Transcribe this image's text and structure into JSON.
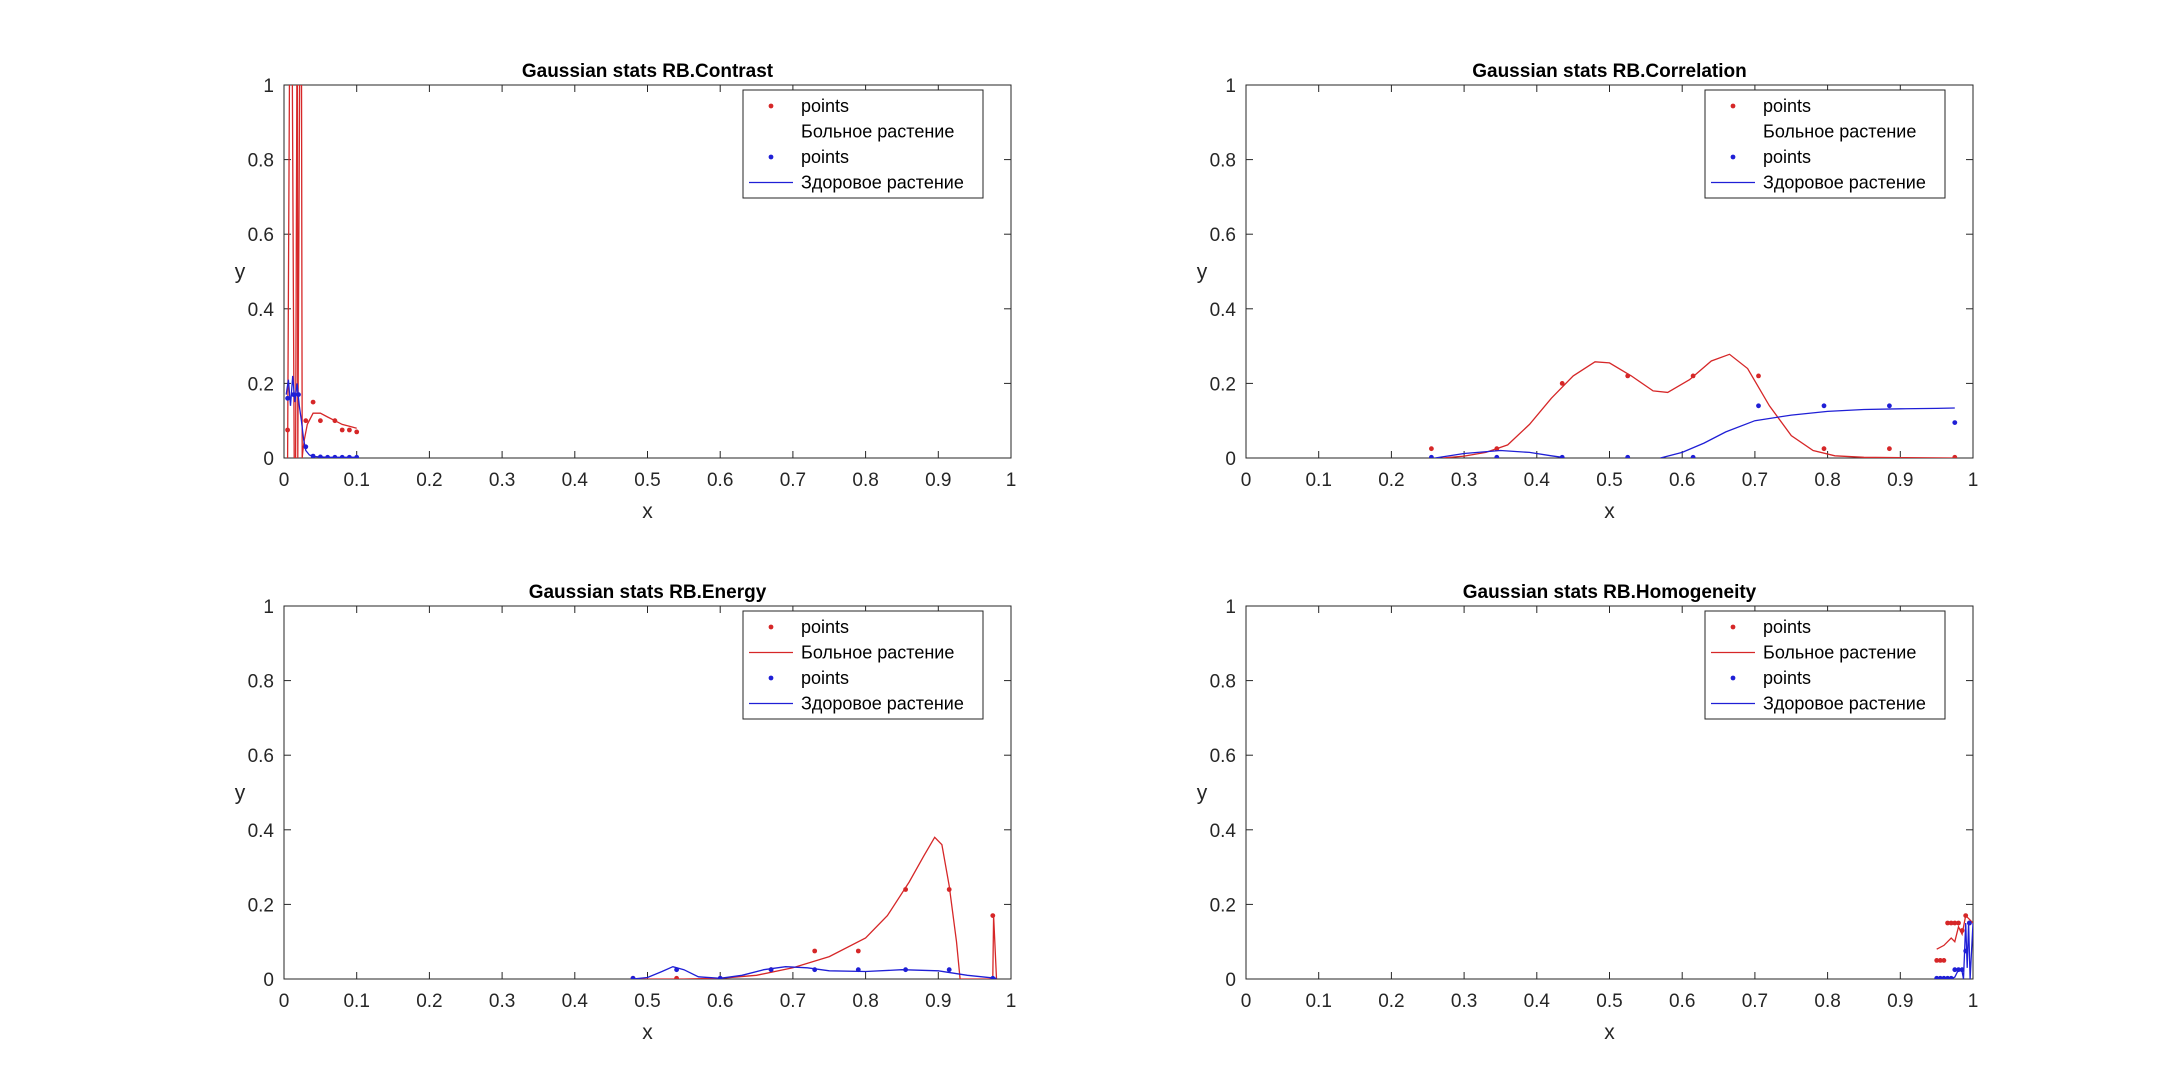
{
  "chart_data": [
    {
      "type": "line",
      "title": "Gaussian stats RB.Contrast",
      "xlabel": "x",
      "ylabel": "y",
      "xlim": [
        0,
        1
      ],
      "ylim": [
        0,
        1
      ],
      "xticks": [
        "0",
        "0.1",
        "0.2",
        "0.3",
        "0.4",
        "0.5",
        "0.6",
        "0.7",
        "0.8",
        "0.9",
        "1"
      ],
      "yticks": [
        "0",
        "0.2",
        "0.4",
        "0.6",
        "0.8",
        "1"
      ],
      "legend_position": "top-right",
      "legend": [
        {
          "label": "points",
          "kind": "marker",
          "color": "#d62728"
        },
        {
          "label": "Больное растение",
          "kind": "none",
          "color": "#d62728"
        },
        {
          "label": "points",
          "kind": "marker",
          "color": "#1f1fd6"
        },
        {
          "label": "Здоровое растение",
          "kind": "line",
          "color": "#1f1fd6"
        }
      ],
      "series": [
        {
          "kind": "points",
          "color": "#d62728",
          "x": [
            0.005,
            0.03,
            0.04,
            0.05,
            0.07,
            0.08,
            0.09,
            0.1
          ],
          "y": [
            0.075,
            0.1,
            0.15,
            0.1,
            0.1,
            0.075,
            0.075,
            0.07
          ]
        },
        {
          "kind": "line",
          "color": "#d62728",
          "x": [
            0.005,
            0.008,
            0.011,
            0.014,
            0.016,
            0.018,
            0.0185,
            0.019,
            0.022,
            0.024,
            0.025,
            0.026,
            0.028,
            0.032,
            0.04,
            0.05,
            0.06,
            0.07,
            0.08,
            0.09,
            0.1
          ],
          "y": [
            0,
            1.2,
            1.2,
            0,
            0,
            1.2,
            1.2,
            0,
            1.2,
            1.2,
            0,
            0.02,
            0.05,
            0.09,
            0.12,
            0.12,
            0.11,
            0.1,
            0.09,
            0.085,
            0.08
          ]
        },
        {
          "kind": "points",
          "color": "#1f1fd6",
          "x": [
            0.005,
            0.013,
            0.02,
            0.03,
            0.04,
            0.05,
            0.06,
            0.07,
            0.08,
            0.09,
            0.1
          ],
          "y": [
            0.16,
            0.17,
            0.17,
            0.03,
            0.005,
            0.003,
            0.002,
            0.002,
            0.002,
            0.002,
            0.002
          ]
        },
        {
          "kind": "line",
          "color": "#1f1fd6",
          "x": [
            0.003,
            0.006,
            0.009,
            0.012,
            0.015,
            0.018,
            0.021,
            0.024,
            0.027,
            0.03,
            0.035,
            0.04,
            0.06,
            0.08,
            0.1
          ],
          "y": [
            0.17,
            0.21,
            0.14,
            0.22,
            0.15,
            0.2,
            0.14,
            0.1,
            0.05,
            0.02,
            0.008,
            0.004,
            0.002,
            0.002,
            0.002
          ]
        }
      ]
    },
    {
      "type": "line",
      "title": "Gaussian stats RB.Correlation",
      "xlabel": "x",
      "ylabel": "y",
      "xlim": [
        0,
        1
      ],
      "ylim": [
        0,
        1
      ],
      "xticks": [
        "0",
        "0.1",
        "0.2",
        "0.3",
        "0.4",
        "0.5",
        "0.6",
        "0.7",
        "0.8",
        "0.9",
        "1"
      ],
      "yticks": [
        "0",
        "0.2",
        "0.4",
        "0.6",
        "0.8",
        "1"
      ],
      "legend_position": "top-right",
      "legend": [
        {
          "label": "points",
          "kind": "marker",
          "color": "#d62728"
        },
        {
          "label": "Больное растение",
          "kind": "none",
          "color": "#d62728"
        },
        {
          "label": "points",
          "kind": "marker",
          "color": "#1f1fd6"
        },
        {
          "label": "Здоровое растение",
          "kind": "line",
          "color": "#1f1fd6"
        }
      ],
      "series": [
        {
          "kind": "points",
          "color": "#d62728",
          "x": [
            0.255,
            0.345,
            0.435,
            0.525,
            0.615,
            0.705,
            0.795,
            0.885,
            0.975
          ],
          "y": [
            0.025,
            0.025,
            0.2,
            0.22,
            0.22,
            0.22,
            0.025,
            0.025,
            0.002
          ]
        },
        {
          "kind": "line",
          "color": "#d62728",
          "x": [
            0.27,
            0.3,
            0.33,
            0.36,
            0.39,
            0.42,
            0.45,
            0.48,
            0.5,
            0.53,
            0.56,
            0.58,
            0.61,
            0.64,
            0.665,
            0.69,
            0.72,
            0.75,
            0.78,
            0.81,
            0.85,
            0.9,
            0.975
          ],
          "y": [
            0,
            0.005,
            0.015,
            0.035,
            0.09,
            0.16,
            0.22,
            0.258,
            0.255,
            0.22,
            0.18,
            0.176,
            0.21,
            0.26,
            0.278,
            0.24,
            0.14,
            0.06,
            0.02,
            0.006,
            0.002,
            0.001,
            0
          ]
        },
        {
          "kind": "points",
          "color": "#1f1fd6",
          "x": [
            0.255,
            0.345,
            0.435,
            0.525,
            0.615,
            0.705,
            0.795,
            0.885,
            0.975
          ],
          "y": [
            0.002,
            0.002,
            0.002,
            0.002,
            0.002,
            0.14,
            0.14,
            0.14,
            0.095
          ]
        },
        {
          "kind": "line",
          "color": "#1f1fd6",
          "x": [
            0.26,
            0.3,
            0.35,
            0.39,
            0.42,
            0.435
          ],
          "y": [
            0,
            0.012,
            0.02,
            0.015,
            0.006,
            0.002
          ]
        },
        {
          "kind": "line",
          "color": "#1f1fd6",
          "x": [
            0.57,
            0.6,
            0.63,
            0.66,
            0.7,
            0.75,
            0.8,
            0.85,
            0.9,
            0.95,
            0.975
          ],
          "y": [
            0,
            0.015,
            0.04,
            0.07,
            0.1,
            0.115,
            0.125,
            0.13,
            0.132,
            0.133,
            0.134
          ]
        }
      ]
    },
    {
      "type": "line",
      "title": "Gaussian stats RB.Energy",
      "xlabel": "x",
      "ylabel": "y",
      "xlim": [
        0,
        1
      ],
      "ylim": [
        0,
        1
      ],
      "xticks": [
        "0",
        "0.1",
        "0.2",
        "0.3",
        "0.4",
        "0.5",
        "0.6",
        "0.7",
        "0.8",
        "0.9",
        "1"
      ],
      "yticks": [
        "0",
        "0.2",
        "0.4",
        "0.6",
        "0.8",
        "1"
      ],
      "legend_position": "top-right",
      "legend": [
        {
          "label": "points",
          "kind": "marker",
          "color": "#d62728"
        },
        {
          "label": "Больное растение",
          "kind": "line",
          "color": "#d62728"
        },
        {
          "label": "points",
          "kind": "marker",
          "color": "#1f1fd6"
        },
        {
          "label": "Здоровое растение",
          "kind": "line",
          "color": "#1f1fd6"
        }
      ],
      "series": [
        {
          "kind": "points",
          "color": "#d62728",
          "x": [
            0.48,
            0.54,
            0.6,
            0.67,
            0.73,
            0.79,
            0.855,
            0.915,
            0.975
          ],
          "y": [
            0.002,
            0.002,
            0.002,
            0.025,
            0.075,
            0.075,
            0.24,
            0.24,
            0.17
          ]
        },
        {
          "kind": "line",
          "color": "#d62728",
          "x": [
            0.48,
            0.55,
            0.6,
            0.65,
            0.7,
            0.75,
            0.8,
            0.83,
            0.86,
            0.88,
            0.895,
            0.905,
            0.915,
            0.925,
            0.93,
            0.94,
            0.97,
            0.975,
            0.976,
            0.98
          ],
          "y": [
            0,
            0,
            0.002,
            0.01,
            0.03,
            0.06,
            0.11,
            0.17,
            0.26,
            0.33,
            0.38,
            0.36,
            0.25,
            0.1,
            0,
            0,
            0,
            0.002,
            0.17,
            0.001
          ]
        },
        {
          "kind": "points",
          "color": "#1f1fd6",
          "x": [
            0.48,
            0.54,
            0.6,
            0.67,
            0.73,
            0.79,
            0.855,
            0.915,
            0.975
          ],
          "y": [
            0.002,
            0.025,
            0.002,
            0.025,
            0.025,
            0.025,
            0.025,
            0.025,
            0.002
          ]
        },
        {
          "kind": "line",
          "color": "#1f1fd6",
          "x": [
            0.48,
            0.5,
            0.52,
            0.535,
            0.55,
            0.57,
            0.6,
            0.63,
            0.66,
            0.69,
            0.72,
            0.75,
            0.8,
            0.85,
            0.9,
            0.94,
            0.98
          ],
          "y": [
            0,
            0.004,
            0.02,
            0.033,
            0.025,
            0.006,
            0.002,
            0.01,
            0.025,
            0.033,
            0.03,
            0.022,
            0.02,
            0.025,
            0.022,
            0.01,
            0.002
          ]
        }
      ]
    },
    {
      "type": "line",
      "title": "Gaussian stats RB.Homogeneity",
      "xlabel": "x",
      "ylabel": "y",
      "xlim": [
        0,
        1
      ],
      "ylim": [
        0,
        1
      ],
      "xticks": [
        "0",
        "0.1",
        "0.2",
        "0.3",
        "0.4",
        "0.5",
        "0.6",
        "0.7",
        "0.8",
        "0.9",
        "1"
      ],
      "yticks": [
        "0",
        "0.2",
        "0.4",
        "0.6",
        "0.8",
        "1"
      ],
      "legend_position": "top-right",
      "legend": [
        {
          "label": "points",
          "kind": "marker",
          "color": "#d62728"
        },
        {
          "label": "Больное растение",
          "kind": "line",
          "color": "#d62728"
        },
        {
          "label": "points",
          "kind": "marker",
          "color": "#1f1fd6"
        },
        {
          "label": "Здоровое растение",
          "kind": "line",
          "color": "#1f1fd6"
        }
      ],
      "series": [
        {
          "kind": "points",
          "color": "#d62728",
          "x": [
            0.95,
            0.955,
            0.96,
            0.965,
            0.97,
            0.975,
            0.98,
            0.985,
            0.99,
            0.995
          ],
          "y": [
            0.05,
            0.05,
            0.05,
            0.15,
            0.15,
            0.15,
            0.15,
            0.13,
            0.17,
            0.15
          ]
        },
        {
          "kind": "line",
          "color": "#d62728",
          "x": [
            0.95,
            0.96,
            0.965,
            0.97,
            0.975,
            0.98,
            0.985,
            0.99,
            0.995,
            1.0
          ],
          "y": [
            0.08,
            0.09,
            0.1,
            0.11,
            0.1,
            0.14,
            0.12,
            0.17,
            0.16,
            0.15
          ]
        },
        {
          "kind": "points",
          "color": "#1f1fd6",
          "x": [
            0.95,
            0.955,
            0.96,
            0.965,
            0.97,
            0.975,
            0.98,
            0.985,
            0.99,
            0.995
          ],
          "y": [
            0.002,
            0.002,
            0.002,
            0.002,
            0.002,
            0.025,
            0.025,
            0.025,
            0.075,
            0.15
          ]
        },
        {
          "kind": "line",
          "color": "#1f1fd6",
          "x": [
            0.95,
            0.97,
            0.975,
            0.98,
            0.985,
            0.987,
            0.99,
            0.992,
            0.994,
            0.996,
            1.0
          ],
          "y": [
            0,
            0,
            0.005,
            0.025,
            0.02,
            0.0,
            0.15,
            0.03,
            0.15,
            0.0,
            0.15
          ]
        }
      ]
    }
  ]
}
